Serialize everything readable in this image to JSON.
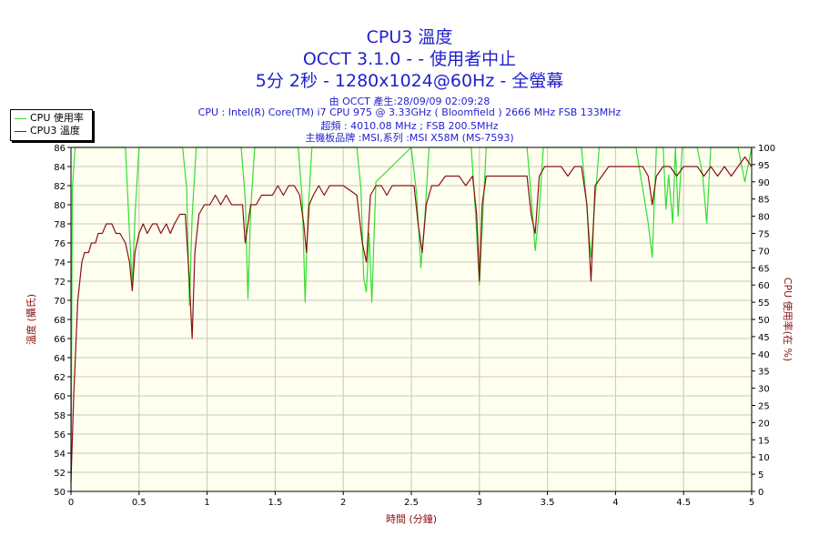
{
  "header": {
    "title": "CPU3 溫度",
    "subtitle": "OCCT 3.1.0 -   - 使用者中止",
    "subtitle2": "5分 2秒 - 1280x1024@60Hz - 全螢幕",
    "info": [
      "由 OCCT 產生:28/09/09 02:09:28",
      "CPU : Intel(R) Core(TM) i7 CPU 975 @ 3.33GHz ( Bloomfield ) 2666 MHz FSB 133MHz",
      "超頻 : 4010.08 MHz ; FSB 200.5MHz",
      "主機板品牌 :MSI,系列 :MSI X58M (MS-7593)"
    ]
  },
  "colors": {
    "plot_bg": "#fffff0",
    "grid": "#c8c8b4",
    "cpu_usage": "#33dd33",
    "cpu_temp": "#8b1010",
    "title": "#1f1fcf",
    "axis_label": "#8b1010"
  },
  "chart_data": {
    "type": "line",
    "xlabel": "時間 (分鐘)",
    "ylabel": "溫度 (攝氏)",
    "y2label": "CPU 使用率(在 %)",
    "xlim": [
      0,
      5
    ],
    "ylim": [
      50,
      86
    ],
    "y2lim": [
      0,
      100
    ],
    "x_ticks": [
      0,
      0.5,
      1,
      1.5,
      2,
      2.5,
      3,
      3.5,
      4,
      4.5,
      5
    ],
    "y_ticks": [
      50,
      52,
      54,
      56,
      58,
      60,
      62,
      64,
      66,
      68,
      70,
      72,
      74,
      76,
      78,
      80,
      82,
      84,
      86
    ],
    "y2_ticks": [
      0,
      5,
      10,
      15,
      20,
      25,
      30,
      35,
      40,
      45,
      50,
      55,
      60,
      65,
      70,
      75,
      80,
      85,
      90,
      95,
      100
    ],
    "grid": true,
    "legend_position": "top-left",
    "series": [
      {
        "name": "CPU 使用率",
        "axis": "right",
        "x": [
          0,
          0.01,
          0.03,
          0.05,
          0.07,
          0.4,
          0.43,
          0.45,
          0.47,
          0.5,
          0.82,
          0.85,
          0.87,
          0.89,
          0.92,
          1.25,
          1.28,
          1.3,
          1.32,
          1.35,
          1.67,
          1.7,
          1.72,
          1.74,
          1.77,
          2.1,
          2.13,
          2.15,
          2.17,
          2.19,
          2.21,
          2.24,
          2.5,
          2.54,
          2.57,
          2.6,
          2.63,
          2.94,
          2.97,
          3.0,
          3.03,
          3.05,
          3.35,
          3.38,
          3.41,
          3.44,
          3.47,
          3.75,
          3.78,
          3.82,
          3.85,
          3.88,
          4.15,
          4.2,
          4.24,
          4.27,
          4.3,
          4.35,
          4.37,
          4.39,
          4.42,
          4.44,
          4.46,
          4.49,
          4.6,
          4.64,
          4.67,
          4.7,
          4.73,
          4.9,
          4.95,
          5.0
        ],
        "values": [
          0,
          88,
          100,
          100,
          100,
          100,
          75,
          60,
          80,
          100,
          100,
          88,
          54,
          80,
          100,
          100,
          85,
          56,
          82,
          100,
          100,
          84,
          55,
          80,
          100,
          100,
          88,
          62,
          58,
          75,
          55,
          90,
          100,
          86,
          65,
          80,
          100,
          100,
          82,
          60,
          84,
          100,
          100,
          86,
          70,
          82,
          100,
          100,
          87,
          68,
          85,
          100,
          100,
          88,
          78,
          68,
          100,
          100,
          82,
          92,
          78,
          100,
          80,
          100,
          100,
          92,
          78,
          100,
          100,
          100,
          90,
          100
        ]
      },
      {
        "name": "CPU3 溫度",
        "axis": "left",
        "x": [
          0,
          0.02,
          0.05,
          0.08,
          0.1,
          0.13,
          0.15,
          0.18,
          0.2,
          0.23,
          0.26,
          0.3,
          0.33,
          0.36,
          0.4,
          0.43,
          0.45,
          0.47,
          0.5,
          0.53,
          0.56,
          0.6,
          0.63,
          0.66,
          0.7,
          0.73,
          0.76,
          0.8,
          0.84,
          0.87,
          0.89,
          0.91,
          0.94,
          0.98,
          1.02,
          1.06,
          1.1,
          1.14,
          1.18,
          1.22,
          1.26,
          1.28,
          1.3,
          1.32,
          1.36,
          1.4,
          1.44,
          1.48,
          1.52,
          1.56,
          1.6,
          1.64,
          1.68,
          1.71,
          1.73,
          1.75,
          1.78,
          1.82,
          1.86,
          1.9,
          2.0,
          2.1,
          2.14,
          2.17,
          2.2,
          2.24,
          2.28,
          2.32,
          2.36,
          2.4,
          2.44,
          2.48,
          2.52,
          2.55,
          2.58,
          2.61,
          2.65,
          2.7,
          2.75,
          2.8,
          2.85,
          2.9,
          2.95,
          2.98,
          3.0,
          3.02,
          3.05,
          3.1,
          3.15,
          3.2,
          3.25,
          3.3,
          3.35,
          3.38,
          3.41,
          3.44,
          3.48,
          3.55,
          3.6,
          3.65,
          3.7,
          3.75,
          3.79,
          3.82,
          3.85,
          3.9,
          3.95,
          4.0,
          4.05,
          4.1,
          4.15,
          4.2,
          4.24,
          4.27,
          4.3,
          4.35,
          4.4,
          4.45,
          4.5,
          4.55,
          4.6,
          4.65,
          4.7,
          4.75,
          4.8,
          4.85,
          4.9,
          4.95,
          5.0
        ],
        "values": [
          51,
          60,
          70,
          74,
          75,
          75,
          76,
          76,
          77,
          77,
          78,
          78,
          77,
          77,
          76,
          74,
          71,
          75,
          77,
          78,
          77,
          78,
          78,
          77,
          78,
          77,
          78,
          79,
          79,
          72,
          66,
          75,
          79,
          80,
          80,
          81,
          80,
          81,
          80,
          80,
          80,
          76,
          78,
          80,
          80,
          81,
          81,
          81,
          82,
          81,
          82,
          82,
          81,
          78,
          75,
          80,
          81,
          82,
          81,
          82,
          82,
          81,
          76,
          74,
          81,
          82,
          82,
          81,
          82,
          82,
          82,
          82,
          82,
          78,
          75,
          80,
          82,
          82,
          83,
          83,
          83,
          82,
          83,
          79,
          72,
          80,
          83,
          83,
          83,
          83,
          83,
          83,
          83,
          79,
          77,
          83,
          84,
          84,
          84,
          83,
          84,
          84,
          80,
          72,
          82,
          83,
          84,
          84,
          84,
          84,
          84,
          84,
          83,
          80,
          83,
          84,
          84,
          83,
          84,
          84,
          84,
          83,
          84,
          83,
          84,
          83,
          84,
          85,
          84
        ]
      }
    ]
  }
}
